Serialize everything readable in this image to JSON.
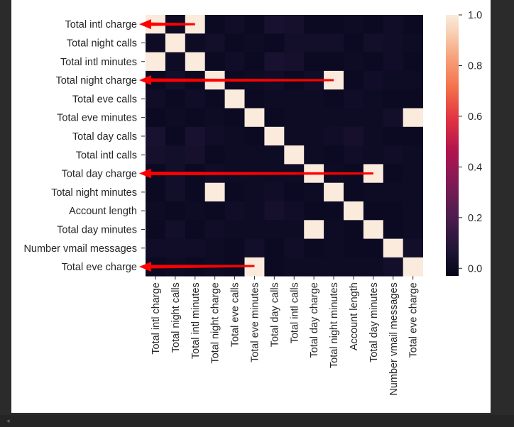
{
  "chart_data": {
    "type": "heatmap",
    "labels": [
      "Total intl charge",
      "Total night calls",
      "Total intl minutes",
      "Total night charge",
      "Total eve calls",
      "Total eve minutes",
      "Total day calls",
      "Total intl calls",
      "Total day charge",
      "Total night minutes",
      "Account length",
      "Total day minutes",
      "Number vmail messages",
      "Total eve charge"
    ],
    "matrix": [
      [
        1.0,
        0.01,
        1.0,
        0.0,
        0.02,
        0.0,
        0.05,
        0.04,
        0.0,
        0.0,
        0.01,
        0.0,
        0.02,
        0.0
      ],
      [
        0.01,
        1.0,
        0.01,
        0.03,
        0.0,
        0.01,
        0.0,
        0.03,
        0.03,
        0.03,
        0.0,
        0.03,
        0.02,
        0.01
      ],
      [
        1.0,
        0.01,
        1.0,
        0.0,
        0.02,
        0.0,
        0.05,
        0.04,
        0.0,
        0.0,
        0.01,
        0.0,
        0.02,
        0.0
      ],
      [
        0.0,
        0.03,
        0.0,
        1.0,
        0.0,
        0.01,
        0.02,
        0.0,
        0.02,
        1.0,
        0.0,
        0.02,
        0.01,
        0.01
      ],
      [
        0.02,
        0.0,
        0.02,
        0.0,
        1.0,
        0.0,
        0.01,
        0.01,
        0.01,
        0.0,
        0.02,
        0.01,
        0.0,
        0.0
      ],
      [
        0.0,
        0.01,
        0.0,
        0.01,
        0.0,
        1.0,
        0.0,
        0.01,
        0.01,
        0.01,
        0.01,
        0.01,
        0.03,
        1.0
      ],
      [
        0.05,
        0.0,
        0.05,
        0.02,
        0.01,
        0.0,
        1.0,
        0.01,
        0.01,
        0.02,
        0.04,
        0.01,
        0.0,
        0.0
      ],
      [
        0.04,
        0.03,
        0.04,
        0.0,
        0.01,
        0.01,
        0.01,
        1.0,
        0.01,
        0.0,
        0.02,
        0.01,
        0.02,
        0.01
      ],
      [
        0.0,
        0.03,
        0.0,
        0.02,
        0.01,
        0.01,
        0.01,
        0.01,
        1.0,
        0.01,
        0.0,
        1.0,
        0.0,
        0.01
      ],
      [
        0.0,
        0.03,
        0.0,
        1.0,
        0.0,
        0.01,
        0.02,
        0.0,
        0.01,
        1.0,
        0.0,
        0.01,
        0.01,
        0.01
      ],
      [
        0.01,
        0.0,
        0.01,
        0.0,
        0.02,
        0.01,
        0.04,
        0.02,
        0.0,
        0.0,
        1.0,
        0.0,
        0.0,
        0.01
      ],
      [
        0.0,
        0.03,
        0.0,
        0.02,
        0.01,
        0.01,
        0.01,
        0.01,
        1.0,
        0.01,
        0.0,
        1.0,
        0.0,
        0.01
      ],
      [
        0.02,
        0.02,
        0.02,
        0.01,
        0.0,
        0.03,
        0.0,
        0.02,
        0.0,
        0.01,
        0.0,
        0.0,
        1.0,
        0.03
      ],
      [
        0.0,
        0.01,
        0.0,
        0.01,
        0.0,
        1.0,
        0.0,
        0.01,
        0.01,
        0.01,
        0.01,
        0.01,
        0.03,
        1.0
      ]
    ],
    "colorbar": {
      "min": -0.03,
      "max": 1.0,
      "ticks": [
        0.0,
        0.2,
        0.4,
        0.6,
        0.8,
        1.0
      ],
      "tick_labels": [
        "0.0",
        "0.2",
        "0.4",
        "0.6",
        "0.8",
        "1.0"
      ],
      "colormap": "rocket"
    },
    "annotations": [
      {
        "type": "arrow",
        "color": "#ff0000",
        "from_cell": [
          0,
          2
        ],
        "to_label": "Total intl charge"
      },
      {
        "type": "arrow",
        "color": "#ff0000",
        "from_cell": [
          3,
          9
        ],
        "to_label": "Total night charge"
      },
      {
        "type": "arrow",
        "color": "#ff0000",
        "from_cell": [
          8,
          11
        ],
        "to_label": "Total day charge"
      },
      {
        "type": "arrow",
        "color": "#ff0000",
        "from_cell": [
          13,
          5
        ],
        "to_label": "Total eve charge"
      }
    ]
  },
  "ui": {
    "scroll_left_icon": "scroll-left-arrow-icon",
    "scroll_left_glyph": "◂"
  }
}
